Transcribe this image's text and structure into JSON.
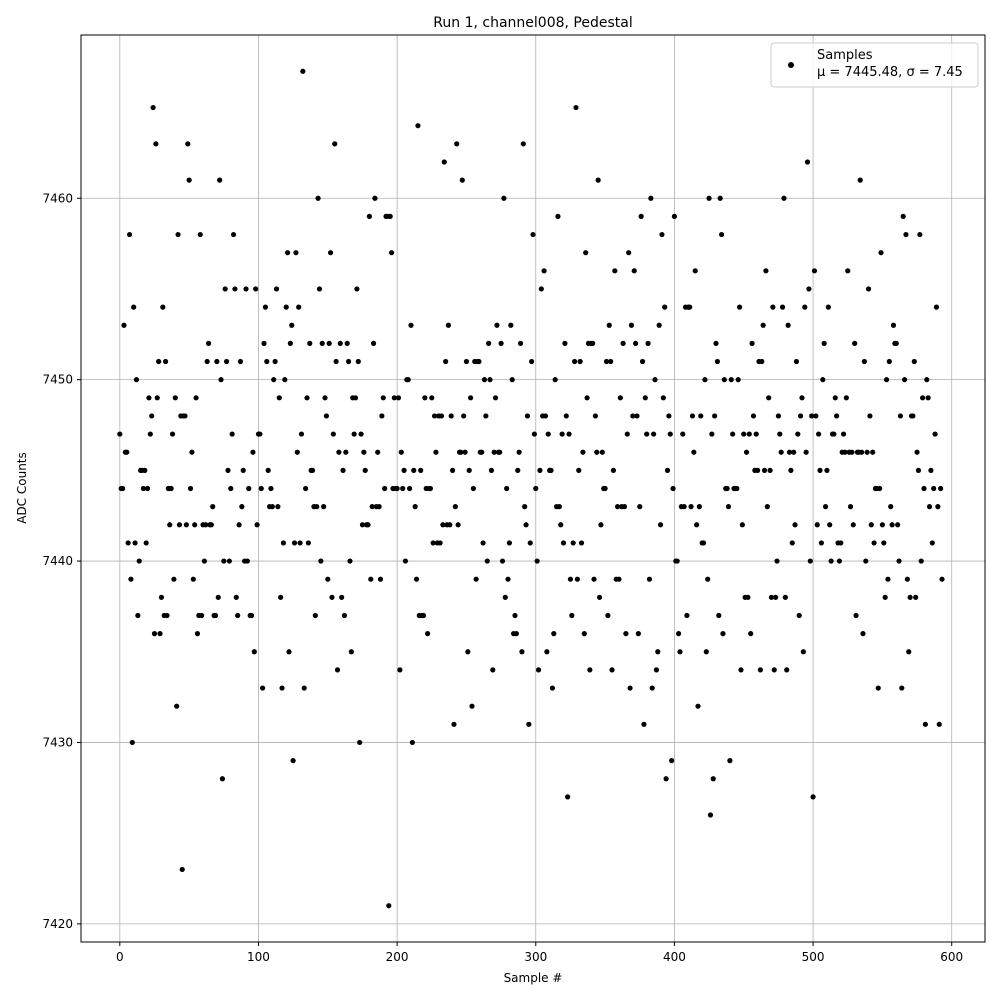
{
  "chart_data": {
    "type": "scatter",
    "title": "Run 1, channel008, Pedestal",
    "xlabel": "Sample #",
    "ylabel": "ADC Counts",
    "xlim": [
      -28,
      624
    ],
    "ylim": [
      7419,
      7469
    ],
    "xticks": [
      0,
      100,
      200,
      300,
      400,
      500,
      600
    ],
    "yticks": [
      7420,
      7430,
      7440,
      7450,
      7460
    ],
    "grid": true,
    "legend_position": "top-right",
    "series": [
      {
        "name": "Samples",
        "stats_label": "μ = 7445.48, σ = 7.45",
        "color": "#000000",
        "marker": "circle",
        "x": [
          0,
          1,
          2,
          3,
          4,
          5,
          6,
          7,
          8,
          9,
          10,
          11,
          12,
          13,
          14,
          15,
          16,
          17,
          18,
          19,
          20,
          21,
          22,
          23,
          24,
          25,
          26,
          27,
          28,
          29,
          30,
          31,
          32,
          33,
          34,
          35,
          36,
          37,
          38,
          39,
          40,
          41,
          42,
          43,
          44,
          45,
          46,
          47,
          48,
          49,
          50,
          51,
          52,
          53,
          54,
          55,
          56,
          57,
          58,
          59,
          60,
          61,
          62,
          63,
          64,
          65,
          66,
          67,
          68,
          69,
          70,
          71,
          72,
          73,
          74,
          75,
          76,
          77,
          78,
          79,
          80,
          81,
          82,
          83,
          84,
          85,
          86,
          87,
          88,
          89,
          90,
          91,
          92,
          93,
          94,
          95,
          96,
          97,
          98,
          99,
          100,
          101,
          102,
          103,
          104,
          105,
          106,
          107,
          108,
          109,
          110,
          111,
          112,
          113,
          114,
          115,
          116,
          117,
          118,
          119,
          120,
          121,
          122,
          123,
          124,
          125,
          126,
          127,
          128,
          129,
          130,
          131,
          132,
          133,
          134,
          135,
          136,
          137,
          138,
          139,
          140,
          141,
          142,
          143,
          144,
          145,
          146,
          147,
          148,
          149,
          150,
          151,
          152,
          153,
          154,
          155,
          156,
          157,
          158,
          159,
          160,
          161,
          162,
          163,
          164,
          165,
          166,
          167,
          168,
          169,
          170,
          171,
          172,
          173,
          174,
          175,
          176,
          177,
          178,
          179,
          180,
          181,
          182,
          183,
          184,
          185,
          186,
          187,
          188,
          189,
          190,
          191,
          192,
          193,
          194,
          195,
          196,
          197,
          198,
          199,
          200,
          201,
          202,
          203,
          204,
          205,
          206,
          207,
          208,
          209,
          210,
          211,
          212,
          213,
          214,
          215,
          216,
          217,
          218,
          219,
          220,
          221,
          222,
          223,
          224,
          225,
          226,
          227,
          228,
          229,
          230,
          231,
          232,
          233,
          234,
          235,
          236,
          237,
          238,
          239,
          240,
          241,
          242,
          243,
          244,
          245,
          246,
          247,
          248,
          249,
          250,
          251,
          252,
          253,
          254,
          255,
          256,
          257,
          258,
          259,
          260,
          261,
          262,
          263,
          264,
          265,
          266,
          267,
          268,
          269,
          270,
          271,
          272,
          273,
          274,
          275,
          276,
          277,
          278,
          279,
          280,
          281,
          282,
          283,
          284,
          285,
          286,
          287,
          288,
          289,
          290,
          291,
          292,
          293,
          294,
          295,
          296,
          297,
          298,
          299,
          300,
          301,
          302,
          303,
          304,
          305,
          306,
          307,
          308,
          309,
          310,
          311,
          312,
          313,
          314,
          315,
          316,
          317,
          318,
          319,
          320,
          321,
          322,
          323,
          324,
          325,
          326,
          327,
          328,
          329,
          330,
          331,
          332,
          333,
          334,
          335,
          336,
          337,
          338,
          339,
          340,
          341,
          342,
          343,
          344,
          345,
          346,
          347,
          348,
          349,
          350,
          351,
          352,
          353,
          354,
          355,
          356,
          357,
          358,
          359,
          360,
          361,
          362,
          363,
          364,
          365,
          366,
          367,
          368,
          369,
          370,
          371,
          372,
          373,
          374,
          375,
          376,
          377,
          378,
          379,
          380,
          381,
          382,
          383,
          384,
          385,
          386,
          387,
          388,
          389,
          390,
          391,
          392,
          393,
          394,
          395,
          396,
          397,
          398,
          399,
          400,
          401,
          402,
          403,
          404,
          405,
          406,
          407,
          408,
          409,
          410,
          411,
          412,
          413,
          414,
          415,
          416,
          417,
          418,
          419,
          420,
          421,
          422,
          423,
          424,
          425,
          426,
          427,
          428,
          429,
          430,
          431,
          432,
          433,
          434,
          435,
          436,
          437,
          438,
          439,
          440,
          441,
          442,
          443,
          444,
          445,
          446,
          447,
          448,
          449,
          450,
          451,
          452,
          453,
          454,
          455,
          456,
          457,
          458,
          459,
          460,
          461,
          462,
          463,
          464,
          465,
          466,
          467,
          468,
          469,
          470,
          471,
          472,
          473,
          474,
          475,
          476,
          477,
          478,
          479,
          480,
          481,
          482,
          483,
          484,
          485,
          486,
          487,
          488,
          489,
          490,
          491,
          492,
          493,
          494,
          495,
          496,
          497,
          498,
          499,
          500,
          501,
          502,
          503,
          504,
          505,
          506,
          507,
          508,
          509,
          510,
          511,
          512,
          513,
          514,
          515,
          516,
          517,
          518,
          519,
          520,
          521,
          522,
          523,
          524,
          525,
          526,
          527,
          528,
          529,
          530,
          531,
          532,
          533,
          534,
          535,
          536,
          537,
          538,
          539,
          540,
          541,
          542,
          543,
          544,
          545,
          546,
          547,
          548,
          549,
          550,
          551,
          552,
          553,
          554,
          555,
          556,
          557,
          558,
          559,
          560,
          561,
          562,
          563,
          564,
          565,
          566,
          567,
          568,
          569,
          570,
          571,
          572,
          573,
          574,
          575,
          576,
          577,
          578,
          579,
          580,
          581,
          582,
          583,
          584,
          585,
          586,
          587,
          588,
          589,
          590,
          591,
          592,
          593
        ],
        "y": [
          7447,
          7444,
          7444,
          7453,
          7446,
          7446,
          7441,
          7458,
          7439,
          7430,
          7454,
          7441,
          7450,
          7437,
          7440,
          7445,
          7445,
          7444,
          7445,
          7441,
          7444,
          7449,
          7447,
          7448,
          7465,
          7436,
          7463,
          7449,
          7451,
          7436,
          7438,
          7454,
          7437,
          7451,
          7437,
          7444,
          7442,
          7444,
          7447,
          7439,
          7449,
          7432,
          7458,
          7442,
          7448,
          7423,
          7448,
          7448,
          7442,
          7463,
          7461,
          7444,
          7446,
          7439,
          7442,
          7449,
          7436,
          7437,
          7458,
          7437,
          7442,
          7440,
          7442,
          7451,
          7452,
          7442,
          7442,
          7443,
          7437,
          7437,
          7451,
          7438,
          7461,
          7450,
          7428,
          7440,
          7455,
          7451,
          7445,
          7440,
          7444,
          7447,
          7458,
          7455,
          7438,
          7437,
          7442,
          7451,
          7443,
          7445,
          7440,
          7455,
          7440,
          7444,
          7437,
          7437,
          7446,
          7435,
          7455,
          7442,
          7447,
          7447,
          7444,
          7433,
          7452,
          7454,
          7451,
          7445,
          7443,
          7444,
          7443,
          7450,
          7451,
          7455,
          7443,
          7449,
          7438,
          7433,
          7441,
          7450,
          7454,
          7457,
          7435,
          7452,
          7453,
          7429,
          7441,
          7457,
          7446,
          7454,
          7441,
          7447,
          7467,
          7433,
          7444,
          7449,
          7441,
          7452,
          7445,
          7445,
          7443,
          7437,
          7443,
          7460,
          7455,
          7440,
          7452,
          7443,
          7449,
          7448,
          7439,
          7452,
          7457,
          7438,
          7447,
          7463,
          7451,
          7434,
          7446,
          7452,
          7438,
          7445,
          7437,
          7446,
          7452,
          7451,
          7440,
          7435,
          7449,
          7447,
          7449,
          7455,
          7451,
          7430,
          7447,
          7442,
          7446,
          7445,
          7442,
          7442,
          7459,
          7439,
          7443,
          7452,
          7460,
          7443,
          7446,
          7443,
          7439,
          7448,
          7449,
          7444,
          7459,
          7459,
          7421,
          7459,
          7457,
          7444,
          7449,
          7444,
          7444,
          7449,
          7434,
          7446,
          7444,
          7445,
          7440,
          7450,
          7450,
          7444,
          7453,
          7430,
          7445,
          7443,
          7439,
          7464,
          7437,
          7445,
          7437,
          7437,
          7449,
          7444,
          7436,
          7444,
          7444,
          7449,
          7441,
          7448,
          7446,
          7441,
          7448,
          7441,
          7448,
          7442,
          7462,
          7451,
          7442,
          7453,
          7442,
          7448,
          7445,
          7431,
          7443,
          7463,
          7442,
          7446,
          7446,
          7461,
          7448,
          7446,
          7451,
          7435,
          7445,
          7449,
          7432,
          7444,
          7451,
          7439,
          7451,
          7451,
          7446,
          7446,
          7441,
          7450,
          7448,
          7440,
          7452,
          7450,
          7445,
          7434,
          7446,
          7449,
          7453,
          7446,
          7446,
          7452,
          7440,
          7460,
          7438,
          7444,
          7439,
          7441,
          7453,
          7450,
          7436,
          7437,
          7436,
          7445,
          7446,
          7452,
          7435,
          7463,
          7443,
          7442,
          7448,
          7431,
          7441,
          7451,
          7458,
          7447,
          7444,
          7440,
          7434,
          7445,
          7455,
          7448,
          7456,
          7448,
          7435,
          7447,
          7445,
          7445,
          7433,
          7436,
          7450,
          7443,
          7459,
          7443,
          7442,
          7447,
          7441,
          7452,
          7448,
          7427,
          7447,
          7439,
          7437,
          7441,
          7451,
          7465,
          7439,
          7445,
          7451,
          7441,
          7446,
          7436,
          7457,
          7449,
          7452,
          7434,
          7452,
          7452,
          7439,
          7448,
          7446,
          7461,
          7438,
          7442,
          7446,
          7444,
          7444,
          7451,
          7437,
          7453,
          7451,
          7434,
          7445,
          7456,
          7439,
          7443,
          7439,
          7449,
          7443,
          7452,
          7443,
          7436,
          7447,
          7457,
          7433,
          7453,
          7448,
          7456,
          7452,
          7448,
          7436,
          7443,
          7459,
          7451,
          7431,
          7449,
          7447,
          7452,
          7439,
          7460,
          7433,
          7447,
          7450,
          7434,
          7435,
          7453,
          7442,
          7458,
          7449,
          7454,
          7428,
          7445,
          7448,
          7447,
          7429,
          7444,
          7459,
          7440,
          7440,
          7436,
          7435,
          7443,
          7447,
          7443,
          7454,
          7437,
          7454,
          7454,
          7443,
          7448,
          7446,
          7456,
          7442,
          7432,
          7443,
          7448,
          7441,
          7441,
          7450,
          7435,
          7439,
          7460,
          7426,
          7447,
          7428,
          7448,
          7452,
          7451,
          7437,
          7460,
          7458,
          7436,
          7450,
          7444,
          7444,
          7443,
          7429,
          7450,
          7447,
          7444,
          7444,
          7444,
          7450,
          7454,
          7434,
          7442,
          7447,
          7438,
          7446,
          7438,
          7447,
          7436,
          7452,
          7448,
          7445,
          7447,
          7445,
          7451,
          7434,
          7451,
          7453,
          7445,
          7456,
          7443,
          7449,
          7445,
          7438,
          7454,
          7434,
          7438,
          7440,
          7448,
          7447,
          7446,
          7454,
          7460,
          7438,
          7434,
          7453,
          7446,
          7445,
          7441,
          7446,
          7442,
          7451,
          7447,
          7437,
          7448,
          7449,
          7435,
          7454,
          7446,
          7462,
          7455,
          7440,
          7448,
          7427,
          7456,
          7448,
          7442,
          7447,
          7445,
          7441,
          7450,
          7452,
          7443,
          7445,
          7454,
          7442,
          7440,
          7447,
          7447,
          7449,
          7448,
          7441,
          7440,
          7441,
          7446,
          7447,
          7446,
          7449,
          7456,
          7446,
          7443,
          7446,
          7442,
          7452,
          7437,
          7446,
          7446,
          7461,
          7446,
          7436,
          7451,
          7440,
          7446,
          7455,
          7448,
          7442,
          7446,
          7441,
          7444,
          7444,
          7433,
          7444,
          7457,
          7442,
          7441,
          7438,
          7450,
          7439,
          7451,
          7443,
          7442,
          7453,
          7452,
          7452,
          7442,
          7440,
          7448,
          7433,
          7459,
          7450,
          7458,
          7439,
          7435,
          7438,
          7448,
          7448,
          7451,
          7438,
          7446,
          7445,
          7458,
          7440,
          7449,
          7444,
          7431,
          7450,
          7449,
          7443,
          7445,
          7441,
          7444,
          7447,
          7454,
          7443,
          7431,
          7444,
          7439
        ]
      }
    ]
  }
}
